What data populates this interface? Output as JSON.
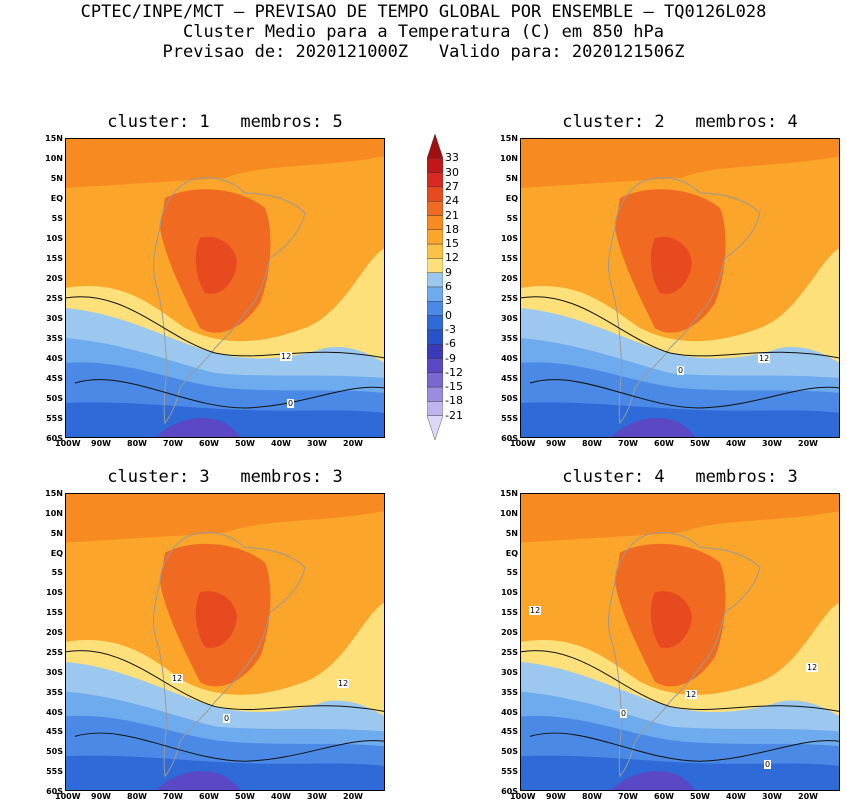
{
  "header": {
    "line1": "CPTEC/INPE/MCT — PREVISAO DE TEMPO GLOBAL POR ENSEMBLE — TQ0126L028",
    "line2": "Cluster Medio para a Temperatura (C) em 850 hPa",
    "line3": "Previsao de: 2020121000Z   Valido para: 2020121506Z"
  },
  "lat_ticks": [
    "15N",
    "10N",
    "5N",
    "EQ",
    "5S",
    "10S",
    "15S",
    "20S",
    "25S",
    "30S",
    "35S",
    "40S",
    "45S",
    "50S",
    "55S",
    "60S"
  ],
  "lon_ticks": [
    "100W",
    "90W",
    "80W",
    "70W",
    "60W",
    "50W",
    "40W",
    "30W",
    "20W"
  ],
  "panels": [
    {
      "title": "cluster: 1   membros: 5",
      "labels": [
        "12",
        "0"
      ]
    },
    {
      "title": "cluster: 2   membros: 4",
      "labels": [
        "12",
        "0"
      ]
    },
    {
      "title": "cluster: 3   membros: 3",
      "labels": [
        "12",
        "12",
        "0"
      ]
    },
    {
      "title": "cluster: 4   membros: 3",
      "labels": [
        "12",
        "12",
        "12",
        "0",
        "0"
      ]
    }
  ],
  "colorbar": {
    "labels": [
      "33",
      "30",
      "27",
      "24",
      "21",
      "18",
      "15",
      "12",
      "9",
      "6",
      "3",
      "0",
      "-3",
      "-6",
      "-9",
      "-12",
      "-15",
      "-18",
      "-21"
    ],
    "colors": [
      "#a01010",
      "#c01818",
      "#d82a20",
      "#e84a20",
      "#f06a22",
      "#f78a20",
      "#fba52a",
      "#fcc247",
      "#fde07a",
      "#9cc8f0",
      "#6eaaee",
      "#4a8ae6",
      "#2e6ad8",
      "#2a52c8",
      "#3a3ab8",
      "#5a48c4",
      "#7a68d0",
      "#9c8ce0",
      "#c0b4ee",
      "#ddd8f8"
    ]
  }
}
